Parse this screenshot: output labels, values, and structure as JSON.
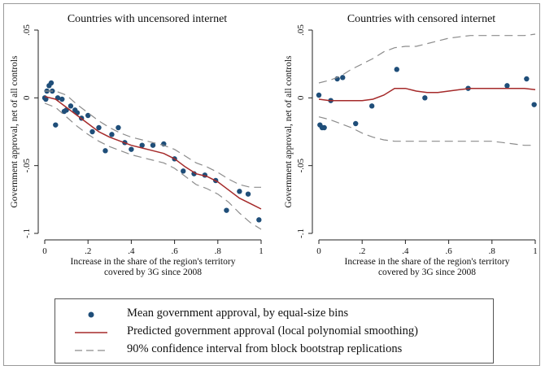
{
  "colors": {
    "marker": "#1f4e79",
    "fit": "#a52a2a",
    "ci": "#8c8c8c"
  },
  "legend": {
    "items": [
      {
        "label": "Mean government approval, by equal-size bins",
        "symbol": "dot"
      },
      {
        "label": "Predicted government approval (local polynomial smoothing)",
        "symbol": "solid"
      },
      {
        "label": "90% confidence interval from block bootstrap replications",
        "symbol": "dashed"
      }
    ]
  },
  "chart_data": [
    {
      "type": "scatter",
      "title": "Countries with uncensored internet",
      "xlabel": "Increase in the share of the region's territory",
      "xlabel2": "covered by 3G since 2008",
      "ylabel": "Government approval, net of all controls",
      "xlim": [
        0,
        1
      ],
      "ylim": [
        -0.1,
        0.05
      ],
      "xticks": [
        0,
        0.2,
        0.4,
        0.6,
        0.8,
        1
      ],
      "xtick_labels": [
        "0",
        ".2",
        ".4",
        ".6",
        ".8",
        "1"
      ],
      "yticks": [
        0.05,
        0,
        -0.05,
        -0.1
      ],
      "ytick_labels": [
        ".05",
        "0",
        "-.05",
        "-.1"
      ],
      "series": [
        {
          "name": "Mean government approval, by equal-size bins",
          "kind": "points",
          "points": [
            [
              0.0,
              0.0
            ],
            [
              0.005,
              -0.001
            ],
            [
              0.01,
              0.005
            ],
            [
              0.02,
              0.009
            ],
            [
              0.03,
              0.011
            ],
            [
              0.035,
              0.005
            ],
            [
              0.05,
              -0.02
            ],
            [
              0.06,
              0.0
            ],
            [
              0.08,
              -0.001
            ],
            [
              0.09,
              -0.01
            ],
            [
              0.1,
              -0.009
            ],
            [
              0.12,
              -0.006
            ],
            [
              0.14,
              -0.009
            ],
            [
              0.15,
              -0.011
            ],
            [
              0.17,
              -0.015
            ],
            [
              0.2,
              -0.013
            ],
            [
              0.22,
              -0.025
            ],
            [
              0.25,
              -0.022
            ],
            [
              0.28,
              -0.039
            ],
            [
              0.31,
              -0.027
            ],
            [
              0.34,
              -0.022
            ],
            [
              0.37,
              -0.033
            ],
            [
              0.4,
              -0.038
            ],
            [
              0.45,
              -0.035
            ],
            [
              0.5,
              -0.035
            ],
            [
              0.55,
              -0.034
            ],
            [
              0.6,
              -0.045
            ],
            [
              0.64,
              -0.054
            ],
            [
              0.69,
              -0.056
            ],
            [
              0.74,
              -0.057
            ],
            [
              0.79,
              -0.061
            ],
            [
              0.84,
              -0.083
            ],
            [
              0.9,
              -0.069
            ],
            [
              0.94,
              -0.071
            ],
            [
              0.99,
              -0.09
            ]
          ]
        },
        {
          "name": "Predicted government approval (local polynomial smoothing)",
          "kind": "line",
          "points": [
            [
              0,
              0.001
            ],
            [
              0.05,
              -0.001
            ],
            [
              0.1,
              -0.007
            ],
            [
              0.15,
              -0.013
            ],
            [
              0.2,
              -0.019
            ],
            [
              0.25,
              -0.025
            ],
            [
              0.3,
              -0.029
            ],
            [
              0.35,
              -0.032
            ],
            [
              0.4,
              -0.035
            ],
            [
              0.45,
              -0.037
            ],
            [
              0.5,
              -0.039
            ],
            [
              0.55,
              -0.041
            ],
            [
              0.6,
              -0.045
            ],
            [
              0.65,
              -0.051
            ],
            [
              0.7,
              -0.056
            ],
            [
              0.75,
              -0.058
            ],
            [
              0.8,
              -0.062
            ],
            [
              0.85,
              -0.068
            ],
            [
              0.9,
              -0.074
            ],
            [
              0.95,
              -0.078
            ],
            [
              1.0,
              -0.082
            ]
          ]
        },
        {
          "name": "90% CI upper",
          "kind": "dashed",
          "points": [
            [
              0,
              0.005
            ],
            [
              0.05,
              0.005
            ],
            [
              0.1,
              0.002
            ],
            [
              0.15,
              -0.005
            ],
            [
              0.2,
              -0.011
            ],
            [
              0.25,
              -0.017
            ],
            [
              0.3,
              -0.022
            ],
            [
              0.35,
              -0.026
            ],
            [
              0.4,
              -0.029
            ],
            [
              0.45,
              -0.031
            ],
            [
              0.5,
              -0.033
            ],
            [
              0.55,
              -0.035
            ],
            [
              0.6,
              -0.038
            ],
            [
              0.65,
              -0.043
            ],
            [
              0.7,
              -0.048
            ],
            [
              0.75,
              -0.051
            ],
            [
              0.8,
              -0.055
            ],
            [
              0.85,
              -0.06
            ],
            [
              0.9,
              -0.064
            ],
            [
              0.95,
              -0.066
            ],
            [
              1.0,
              -0.066
            ]
          ]
        },
        {
          "name": "90% CI lower",
          "kind": "dashed",
          "points": [
            [
              0,
              -0.004
            ],
            [
              0.05,
              -0.007
            ],
            [
              0.1,
              -0.014
            ],
            [
              0.15,
              -0.021
            ],
            [
              0.2,
              -0.027
            ],
            [
              0.25,
              -0.032
            ],
            [
              0.3,
              -0.036
            ],
            [
              0.35,
              -0.039
            ],
            [
              0.4,
              -0.042
            ],
            [
              0.45,
              -0.044
            ],
            [
              0.5,
              -0.046
            ],
            [
              0.55,
              -0.048
            ],
            [
              0.6,
              -0.052
            ],
            [
              0.65,
              -0.058
            ],
            [
              0.7,
              -0.064
            ],
            [
              0.75,
              -0.067
            ],
            [
              0.8,
              -0.071
            ],
            [
              0.85,
              -0.077
            ],
            [
              0.9,
              -0.085
            ],
            [
              0.95,
              -0.092
            ],
            [
              1.0,
              -0.097
            ]
          ]
        }
      ]
    },
    {
      "type": "scatter",
      "title": "Countries with censored internet",
      "xlabel": "Increase in the share of the region's territory",
      "xlabel2": "covered by 3G since 2008",
      "ylabel": "Government approval, net of all controls",
      "xlim": [
        0,
        1
      ],
      "ylim": [
        -0.1,
        0.05
      ],
      "xticks": [
        0,
        0.2,
        0.4,
        0.6,
        0.8,
        1
      ],
      "xtick_labels": [
        "0",
        ".2",
        ".4",
        ".6",
        ".8",
        "1"
      ],
      "yticks": [
        0.05,
        0,
        -0.05,
        -0.1
      ],
      "ytick_labels": [
        ".05",
        "0",
        "-.05",
        "-.1"
      ],
      "series": [
        {
          "name": "Mean government approval, by equal-size bins",
          "kind": "points",
          "points": [
            [
              0.0,
              0.002
            ],
            [
              0.005,
              -0.02
            ],
            [
              0.015,
              -0.022
            ],
            [
              0.025,
              -0.022
            ],
            [
              0.055,
              -0.002
            ],
            [
              0.085,
              0.014
            ],
            [
              0.11,
              0.015
            ],
            [
              0.17,
              -0.019
            ],
            [
              0.245,
              -0.006
            ],
            [
              0.36,
              0.021
            ],
            [
              0.49,
              0.0
            ],
            [
              0.69,
              0.007
            ],
            [
              0.87,
              0.009
            ],
            [
              0.96,
              0.014
            ],
            [
              0.995,
              -0.005
            ]
          ]
        },
        {
          "name": "Predicted government approval (local polynomial smoothing)",
          "kind": "line",
          "points": [
            [
              0,
              -0.001
            ],
            [
              0.05,
              -0.002
            ],
            [
              0.1,
              -0.002
            ],
            [
              0.15,
              -0.002
            ],
            [
              0.2,
              -0.002
            ],
            [
              0.25,
              -0.001
            ],
            [
              0.3,
              0.002
            ],
            [
              0.35,
              0.007
            ],
            [
              0.4,
              0.007
            ],
            [
              0.45,
              0.005
            ],
            [
              0.5,
              0.004
            ],
            [
              0.55,
              0.004
            ],
            [
              0.6,
              0.005
            ],
            [
              0.65,
              0.006
            ],
            [
              0.7,
              0.007
            ],
            [
              0.75,
              0.007
            ],
            [
              0.8,
              0.007
            ],
            [
              0.85,
              0.007
            ],
            [
              0.9,
              0.007
            ],
            [
              0.95,
              0.007
            ],
            [
              1.0,
              0.006
            ]
          ]
        },
        {
          "name": "90% CI upper",
          "kind": "dashed",
          "points": [
            [
              0,
              0.011
            ],
            [
              0.05,
              0.013
            ],
            [
              0.1,
              0.016
            ],
            [
              0.15,
              0.021
            ],
            [
              0.2,
              0.025
            ],
            [
              0.25,
              0.029
            ],
            [
              0.3,
              0.034
            ],
            [
              0.35,
              0.037
            ],
            [
              0.4,
              0.038
            ],
            [
              0.45,
              0.038
            ],
            [
              0.5,
              0.04
            ],
            [
              0.55,
              0.042
            ],
            [
              0.6,
              0.044
            ],
            [
              0.65,
              0.045
            ],
            [
              0.7,
              0.046
            ],
            [
              0.75,
              0.046
            ],
            [
              0.8,
              0.046
            ],
            [
              0.85,
              0.046
            ],
            [
              0.9,
              0.046
            ],
            [
              0.95,
              0.046
            ],
            [
              1.0,
              0.047
            ]
          ]
        },
        {
          "name": "90% CI lower",
          "kind": "dashed",
          "points": [
            [
              0,
              -0.014
            ],
            [
              0.05,
              -0.016
            ],
            [
              0.1,
              -0.019
            ],
            [
              0.15,
              -0.022
            ],
            [
              0.2,
              -0.026
            ],
            [
              0.25,
              -0.029
            ],
            [
              0.3,
              -0.031
            ],
            [
              0.35,
              -0.032
            ],
            [
              0.4,
              -0.032
            ],
            [
              0.45,
              -0.032
            ],
            [
              0.5,
              -0.032
            ],
            [
              0.55,
              -0.032
            ],
            [
              0.6,
              -0.032
            ],
            [
              0.65,
              -0.032
            ],
            [
              0.7,
              -0.032
            ],
            [
              0.75,
              -0.032
            ],
            [
              0.8,
              -0.032
            ],
            [
              0.85,
              -0.033
            ],
            [
              0.9,
              -0.034
            ],
            [
              0.95,
              -0.035
            ],
            [
              1.0,
              -0.035
            ]
          ]
        }
      ]
    }
  ]
}
